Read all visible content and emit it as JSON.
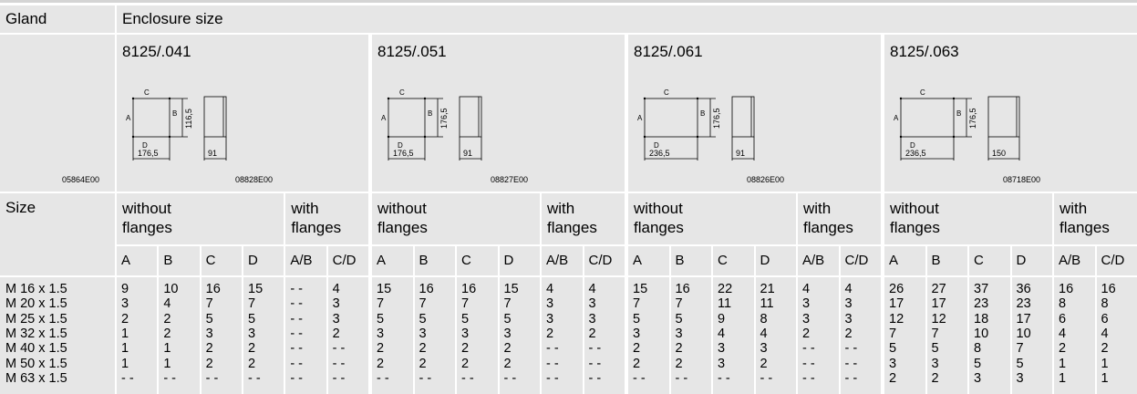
{
  "header": {
    "gland": "Gland",
    "enclosure": "Enclosure size"
  },
  "gland_image_code": "05864E00",
  "size_label": "Size",
  "without_flanges": "without flanges",
  "with_flanges": "with flanges",
  "columns": [
    "A",
    "B",
    "C",
    "D",
    "A/B",
    "C/D"
  ],
  "sizes": [
    "M 16 x 1.5",
    "M 20 x 1.5",
    "M 25 x 1.5",
    "M 32 x 1.5",
    "M 40 x 1.5",
    "M 50 x 1.5",
    "M 63 x 1.5"
  ],
  "groups": [
    {
      "title": "8125/.041",
      "drawing": {
        "c": "C",
        "a": "A",
        "b": "B",
        "d": "D",
        "height": "116,5",
        "width": "176,5",
        "depth": "91",
        "code": "08828E00"
      },
      "values": [
        [
          9,
          3,
          2,
          1,
          1,
          1,
          "- -"
        ],
        [
          10,
          4,
          2,
          2,
          1,
          1,
          "- -"
        ],
        [
          16,
          7,
          5,
          3,
          2,
          2,
          "- -"
        ],
        [
          15,
          7,
          5,
          3,
          2,
          2,
          "- -"
        ],
        [
          "- -",
          "- -",
          "- -",
          "- -",
          "- -",
          "- -",
          "- -"
        ],
        [
          4,
          3,
          3,
          2,
          "- -",
          "- -",
          "- -"
        ]
      ]
    },
    {
      "title": "8125/.051",
      "drawing": {
        "c": "C",
        "a": "A",
        "b": "B",
        "d": "D",
        "height": "176,5",
        "width": "176,5",
        "depth": "91",
        "code": "08827E00"
      },
      "values": [
        [
          15,
          7,
          5,
          3,
          2,
          2,
          "- -"
        ],
        [
          16,
          7,
          5,
          3,
          2,
          2,
          "- -"
        ],
        [
          16,
          7,
          5,
          3,
          2,
          2,
          "- -"
        ],
        [
          15,
          7,
          5,
          3,
          2,
          2,
          "- -"
        ],
        [
          4,
          3,
          3,
          2,
          "- -",
          "- -",
          "- -"
        ],
        [
          4,
          3,
          3,
          2,
          "- -",
          "- -",
          "- -"
        ]
      ]
    },
    {
      "title": "8125/.061",
      "drawing": {
        "c": "C",
        "a": "A",
        "b": "B",
        "d": "D",
        "height": "176,5",
        "width": "236,5",
        "depth": "91",
        "code": "08826E00"
      },
      "values": [
        [
          15,
          7,
          5,
          3,
          2,
          2,
          "- -"
        ],
        [
          16,
          7,
          5,
          3,
          2,
          2,
          "- -"
        ],
        [
          22,
          11,
          9,
          4,
          3,
          3,
          "- -"
        ],
        [
          21,
          11,
          8,
          4,
          3,
          2,
          "- -"
        ],
        [
          4,
          3,
          3,
          2,
          "- -",
          "- -",
          "- -"
        ],
        [
          4,
          3,
          3,
          2,
          "- -",
          "- -",
          "- -"
        ]
      ]
    },
    {
      "title": "8125/.063",
      "drawing": {
        "c": "C",
        "a": "A",
        "b": "B",
        "d": "D",
        "height": "176,5",
        "width": "236,5",
        "depth": "150",
        "code": "08718E00"
      },
      "values": [
        [
          26,
          17,
          12,
          7,
          5,
          3,
          2
        ],
        [
          27,
          17,
          12,
          7,
          5,
          3,
          2
        ],
        [
          37,
          23,
          18,
          10,
          8,
          5,
          3
        ],
        [
          36,
          23,
          17,
          10,
          7,
          5,
          3
        ],
        [
          16,
          8,
          6,
          4,
          2,
          1,
          1
        ],
        [
          16,
          8,
          6,
          4,
          2,
          1,
          1
        ]
      ]
    }
  ]
}
